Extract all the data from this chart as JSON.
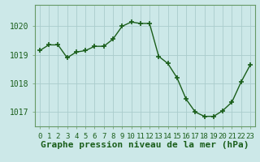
{
  "x": [
    0,
    1,
    2,
    3,
    4,
    5,
    6,
    7,
    8,
    9,
    10,
    11,
    12,
    13,
    14,
    15,
    16,
    17,
    18,
    19,
    20,
    21,
    22,
    23
  ],
  "y": [
    1019.15,
    1019.35,
    1019.35,
    1018.9,
    1019.1,
    1019.15,
    1019.3,
    1019.3,
    1019.55,
    1020.0,
    1020.15,
    1020.1,
    1020.1,
    1018.95,
    1018.7,
    1018.2,
    1017.45,
    1017.0,
    1016.85,
    1016.85,
    1017.05,
    1017.35,
    1018.05,
    1018.65
  ],
  "ylim_min": 1016.5,
  "ylim_max": 1020.75,
  "yticks": [
    1017,
    1018,
    1019,
    1020
  ],
  "xticks": [
    0,
    1,
    2,
    3,
    4,
    5,
    6,
    7,
    8,
    9,
    10,
    11,
    12,
    13,
    14,
    15,
    16,
    17,
    18,
    19,
    20,
    21,
    22,
    23
  ],
  "line_color": "#1a5e1a",
  "bg_color": "#cce8e8",
  "grid_color": "#aacccc",
  "border_color": "#669966",
  "xlabel": "Graphe pression niveau de la mer (hPa)",
  "tick_color": "#1a5e1a",
  "tick_fontsize": 7,
  "xlabel_fontsize": 8
}
